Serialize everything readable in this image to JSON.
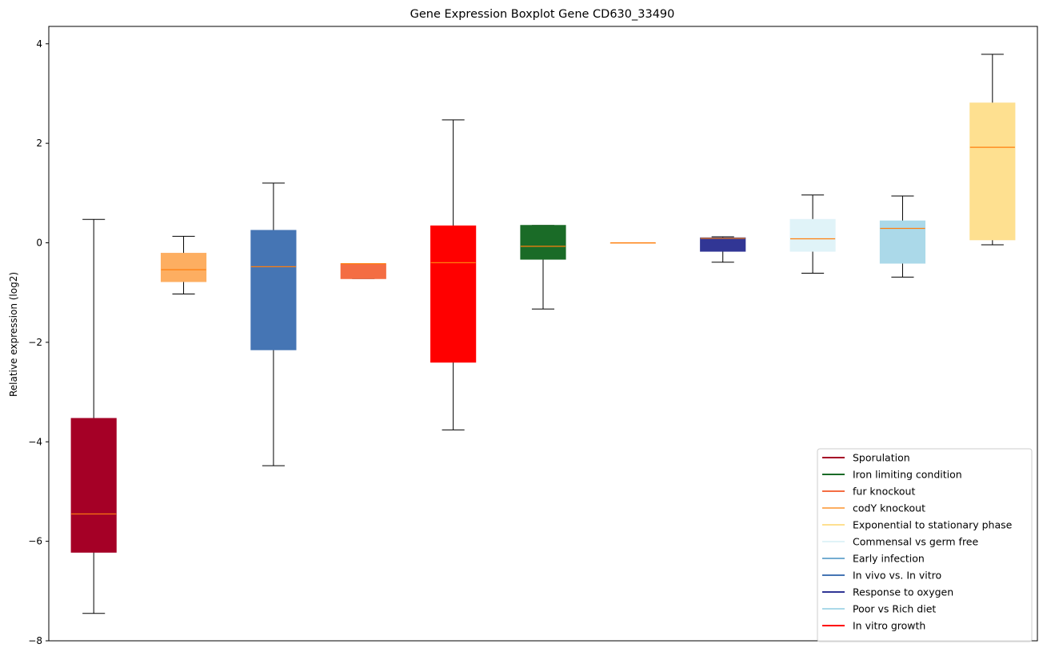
{
  "chart_data": {
    "type": "boxplot",
    "title": "Gene Expression Boxplot Gene CD630_33490",
    "xlabel": "",
    "ylabel": "Relative expression (log2)",
    "ylim": [
      -8,
      4.35
    ],
    "yticks": [
      4,
      2,
      0,
      -2,
      -4,
      -6,
      -8
    ],
    "grid": false,
    "legend_position": "lower-right",
    "median_color": "#ff7f0e",
    "boxes": [
      {
        "color": "#a50026",
        "whisker_low": -7.45,
        "q1": -6.22,
        "median": -5.45,
        "q3": -3.53,
        "whisker_high": 0.47
      },
      {
        "color": "#fdae61",
        "whisker_low": -1.03,
        "q1": -0.78,
        "median": -0.54,
        "q3": -0.21,
        "whisker_high": 0.13
      },
      {
        "color": "#4575b4",
        "whisker_low": -4.48,
        "q1": -2.15,
        "median": -0.48,
        "q3": 0.25,
        "whisker_high": 1.2
      },
      {
        "color": "#f46d43",
        "whisker_low": -0.72,
        "q1": -0.72,
        "median": -0.42,
        "q3": -0.42,
        "whisker_high": -0.42
      },
      {
        "color": "#ff0000",
        "whisker_low": -3.76,
        "q1": -2.4,
        "median": -0.4,
        "q3": 0.34,
        "whisker_high": 2.47
      },
      {
        "color": "#1a6b27",
        "whisker_low": -1.33,
        "q1": -0.33,
        "median": -0.07,
        "q3": 0.35,
        "whisker_high": 0.35
      },
      {
        "color": "#fdae61",
        "whisker_low": 0.0,
        "q1": 0.0,
        "median": 0.0,
        "q3": 0.0,
        "whisker_high": 0.0
      },
      {
        "color": "#313695",
        "whisker_low": -0.39,
        "q1": -0.17,
        "median": 0.09,
        "q3": 0.1,
        "whisker_high": 0.12
      },
      {
        "color": "#e0f3f8",
        "whisker_low": -0.61,
        "q1": -0.17,
        "median": 0.08,
        "q3": 0.47,
        "whisker_high": 0.96
      },
      {
        "color": "#abd9e9",
        "whisker_low": -0.69,
        "q1": -0.41,
        "median": 0.29,
        "q3": 0.44,
        "whisker_high": 0.94
      },
      {
        "color": "#fee090",
        "whisker_low": -0.04,
        "q1": 0.06,
        "median": 1.92,
        "q3": 2.81,
        "whisker_high": 3.79
      }
    ],
    "legend": [
      {
        "label": "Sporulation",
        "color": "#a50026"
      },
      {
        "label": "Iron limiting condition",
        "color": "#1a6b27"
      },
      {
        "label": "fur knockout",
        "color": "#f46d43"
      },
      {
        "label": "codY knockout",
        "color": "#fdae61"
      },
      {
        "label": "Exponential to stationary phase",
        "color": "#fee090"
      },
      {
        "label": "Commensal vs germ free",
        "color": "#e0f3f8"
      },
      {
        "label": "Early infection",
        "color": "#74add1"
      },
      {
        "label": "In vivo vs. In vitro",
        "color": "#4575b4"
      },
      {
        "label": "Response to oxygen",
        "color": "#313695"
      },
      {
        "label": "Poor vs Rich diet",
        "color": "#abd9e9"
      },
      {
        "label": "In vitro growth",
        "color": "#ff0000"
      }
    ]
  }
}
